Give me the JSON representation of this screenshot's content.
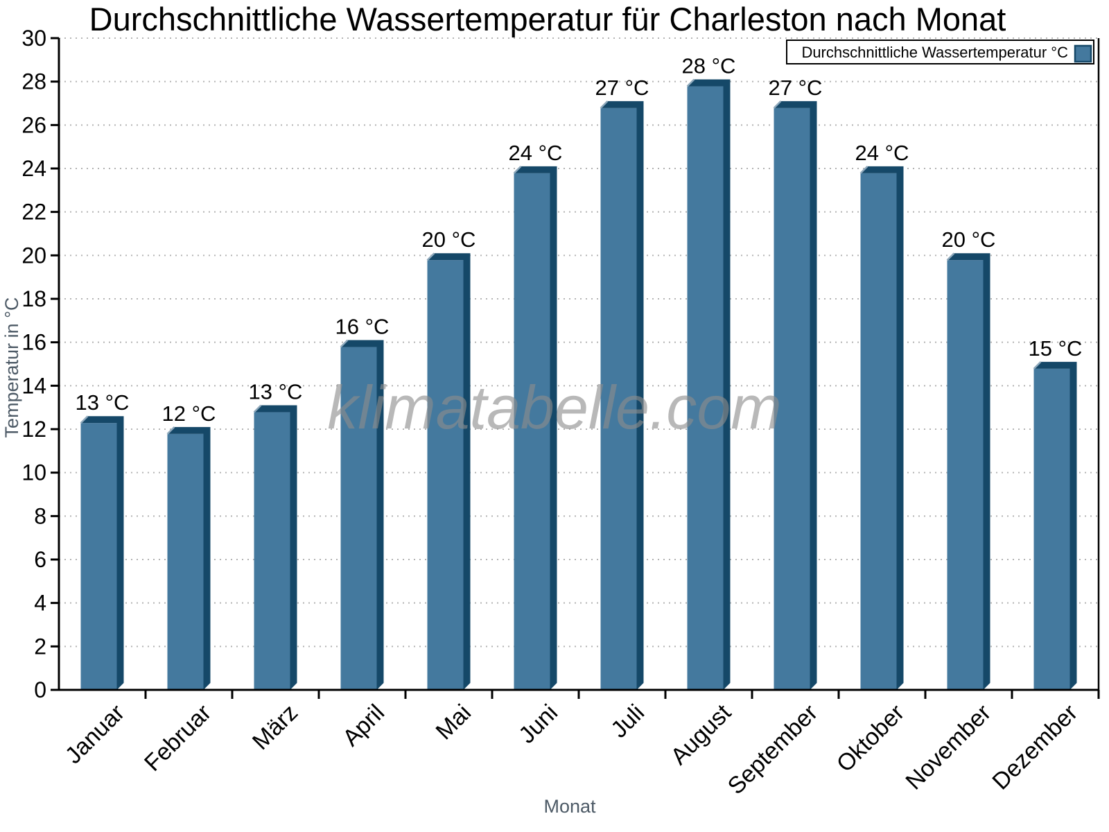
{
  "title": "Durchschnittliche Wassertemperatur für Charleston nach Monat",
  "watermark": "klimatabelle.com",
  "axis": {
    "x_label": "Monat",
    "y_label": "Temperatur in °C"
  },
  "y_ticks": [
    "0",
    "2",
    "4",
    "6",
    "8",
    "10",
    "12",
    "14",
    "16",
    "18",
    "20",
    "22",
    "24",
    "26",
    "28",
    "30"
  ],
  "legend": {
    "label": "Durchschnittliche Wassertemperatur °C",
    "swatch_color": "#44799E"
  },
  "colors": {
    "bar_face": "#44799E",
    "bar_side": "#154868",
    "bar_highlight": "#8FA9BC",
    "grid": "#B3B3B3",
    "axis": "#000000",
    "axis_title": "#4D5A66",
    "watermark": "#8C8C8C"
  },
  "chart_data": {
    "type": "bar",
    "title": "Durchschnittliche Wassertemperatur für Charleston nach Monat",
    "xlabel": "Monat",
    "ylabel": "Temperatur in °C",
    "categories": [
      "Januar",
      "Februar",
      "März",
      "April",
      "Mai",
      "Juni",
      "Juli",
      "August",
      "September",
      "Oktober",
      "November",
      "Dezember"
    ],
    "series": [
      {
        "name": "Durchschnittliche Wassertemperatur °C",
        "values": [
          12.6,
          12.1,
          13.1,
          16.1,
          20.1,
          24.1,
          27.1,
          28.1,
          27.1,
          24.1,
          20.1,
          15.1
        ]
      }
    ],
    "value_labels": [
      "13 °C",
      "12 °C",
      "13 °C",
      "16 °C",
      "20 °C",
      "24 °C",
      "27 °C",
      "28 °C",
      "27 °C",
      "24 °C",
      "20 °C",
      "15 °C"
    ],
    "ylim": [
      0,
      30
    ],
    "ytick_step": 2,
    "grid": "horizontal-dotted",
    "legend_position": "top-right",
    "bar_color": "#44799E",
    "bar_style": "3d-extruded-right"
  }
}
